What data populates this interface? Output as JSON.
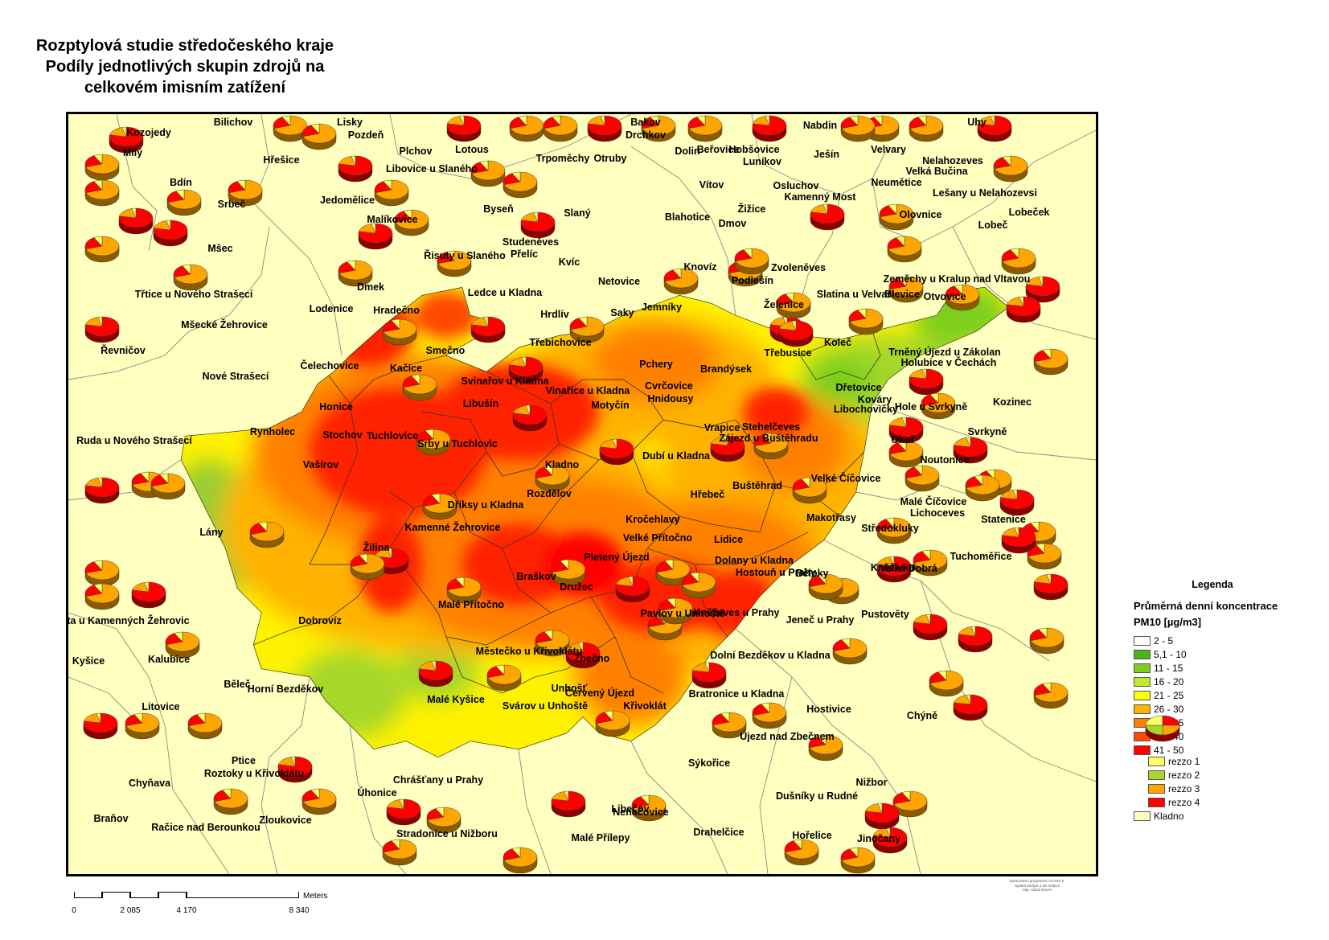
{
  "title_lines": [
    "Rozptylová studie středočeského kraje",
    "Podíly jednotlivých skupin zdrojů na",
    "celkovém imisním zatížení"
  ],
  "colors": {
    "background": "#FFFFC0",
    "class_1": "#FFFFFF",
    "class_2": "#4CB318",
    "class_3": "#7DCF1E",
    "class_4": "#C3E82E",
    "class_5": "#FFFF00",
    "class_6": "#FFB300",
    "class_7": "#FF8000",
    "class_8": "#FF4A00",
    "class_9": "#FF0000",
    "rezzo_1": "#FFFF66",
    "rezzo_2": "#A6D72A",
    "rezzo_3": "#FFA500",
    "rezzo_4": "#FF0000",
    "kladno": "#FFFFC0"
  },
  "legend": {
    "title": "Legenda",
    "subtitle_lines": [
      "Průměrná denní koncentrace",
      "PM10 [µg/m3]"
    ],
    "classes": [
      {
        "label": "2 - 5",
        "color": "#FFFFFF"
      },
      {
        "label": "5,1 - 10",
        "color": "#4CB318"
      },
      {
        "label": "11 - 15",
        "color": "#7DCF1E"
      },
      {
        "label": "16 - 20",
        "color": "#C3E82E"
      },
      {
        "label": "21 - 25",
        "color": "#FFFF00"
      },
      {
        "label": "26 - 30",
        "color": "#FFB300"
      },
      {
        "label": "31 - 35",
        "color": "#FF8000"
      },
      {
        "label": "36 - 40",
        "color": "#FF4A00"
      },
      {
        "label": "41 - 50",
        "color": "#FF0000"
      }
    ],
    "rezzo": [
      {
        "label": "rezzo 1",
        "color": "#FFFF66"
      },
      {
        "label": "rezzo 2",
        "color": "#A6D72A"
      },
      {
        "label": "rezzo 3",
        "color": "#FFA500"
      },
      {
        "label": "rezzo 4",
        "color": "#FF0000"
      }
    ],
    "kladno_label": "Kladno"
  },
  "scalebar": {
    "unit": "Meters",
    "ticks": [
      "0",
      "2 085",
      "4 170",
      "8 340"
    ]
  },
  "credits_lines": [
    "Zpracováno programem ArcGIS 9,",
    "Spatial Analyst a 3D Analyst",
    "Mgr. Jakub Bucek"
  ],
  "places": [
    "Bilichov",
    "Lisky",
    "Pozdeň",
    "Bakov",
    "Drchkov",
    "Nabdin",
    "Uhy",
    "Kozojedy",
    "Plchov",
    "Lotous",
    "Trpoměchy",
    "Otruby",
    "Dolin",
    "Beřovice",
    "Hobšovice",
    "Luníkov",
    "Ješín",
    "Velvary",
    "Milý",
    "Hřešice",
    "Libovice u Slaného",
    "Nelahozeves",
    "Velká Bučina",
    "Bdín",
    "Srbeč",
    "Jedomělice",
    "Byseň",
    "Slaný",
    "Vítov",
    "Žižice",
    "Osluchov",
    "Kamenný Most",
    "Neumětice",
    "Lešany u Nelahozevsi",
    "Lobeček",
    "Lobeč",
    "Olovnice",
    "Blahotice",
    "Dmov",
    "Malíkovice",
    "Studeněves",
    "Přelíc",
    "Řisuty u Slaného",
    "Mšec",
    "Kvíc",
    "Knovíz",
    "Zvoleněves",
    "Podlešín",
    "Netovice",
    "Ledce u Kladna",
    "Dmek",
    "Zeměchy u Kralup nad Vltavou",
    "Slatina u Velvar",
    "Blevice",
    "Otvovice",
    "Třtice u Nového Strašecí",
    "Lodenice",
    "Hradečno",
    "Hrdlív",
    "Saky",
    "Jemníky",
    "Želenice",
    "Mšecké Žehrovice",
    "Řevničov",
    "Třebichovice",
    "Třebusice",
    "Koleč",
    "Trněný Újezd u Zákolan",
    "Holubice v Čechách",
    "Smečno",
    "Pchery",
    "Brandýsek",
    "Kačice",
    "Čelechovice",
    "Nové Strašecí",
    "Svinařov u Kladna",
    "Vinařice u Kladna",
    "Cvrčovice",
    "Hnidousy",
    "Dřetovice",
    "Kováry",
    "Libochovičky",
    "Hole u Svrkyně",
    "Kozinec",
    "Honice",
    "Libušín",
    "Motyčín",
    "Vrapice",
    "Stehelčeves",
    "Zájezd u Buštěhradu",
    "Svrkyně",
    "Rynholec",
    "Stochov",
    "Tuchlovice",
    "Srby u Tuchlovic",
    "Okoř",
    "Ruda u Nového Strašecí",
    "Dubí u Kladna",
    "Noutonice",
    "Kladno",
    "Vašírov",
    "Velké Číčovice",
    "Buštěhrad",
    "Rozdělov",
    "Hřebeč",
    "Malé Číčovice",
    "Lichoceves",
    "Dříksy u Kladna",
    "Makotřasy",
    "Statenice",
    "Kamenné Žehrovice",
    "Kročehlavy",
    "Středokluky",
    "Lány",
    "Velké Přítočno",
    "Lidice",
    "Žilina",
    "Pletený Újezd",
    "Dolany u Kladna",
    "Tuchoměřice",
    "Hostouň u Prahy",
    "Běloky",
    "Kněžívka",
    "Velká Dobrá",
    "Braškov",
    "Družec",
    "Malé Přítočno",
    "Pavlov u Unhoště",
    "Kněževes u Prahy",
    "Pustověty",
    "Lhota u Kamenných Žehrovic",
    "Dobrovíz",
    "Jeneč u Prahy",
    "Dolní Bezděkov u Kladna",
    "Městečko u Křivoklátu",
    "Kalubice",
    "Kyšice",
    "Zbečno",
    "Běleč",
    "Horní Bezděkov",
    "Unhošť",
    "Červený Újezd",
    "Bratronice u Kladna",
    "Malé Kyšice",
    "Svárov u Unhoště",
    "Křivoklát",
    "Litovice",
    "Hostivice",
    "Chýně",
    "Újezd nad Zbečnem",
    "Ptice",
    "Sýkořice",
    "Roztoky u Křivoklátu",
    "Chyňava",
    "Chrášťany u Prahy",
    "Nižbor",
    "Úhonice",
    "Dušníky u Rudné",
    "Libečov",
    "Nenačovice",
    "Braňov",
    "Zloukovice",
    "Račice nad Berounkou",
    "Stradonice u Nižboru",
    "Drahelčice",
    "Hořelice",
    "Malé Přílepy",
    "Jinočany"
  ]
}
